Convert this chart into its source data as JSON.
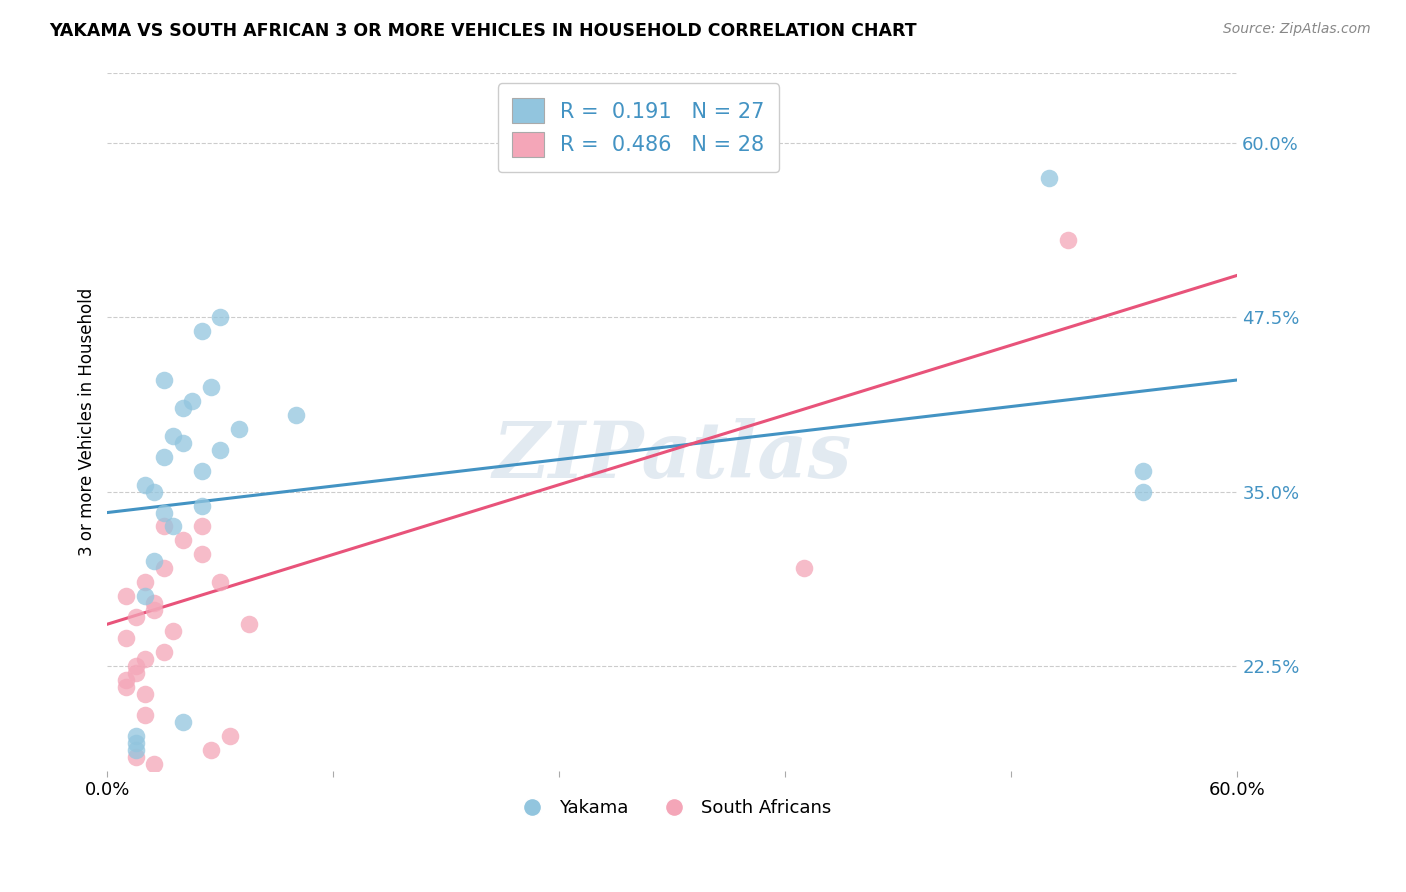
{
  "title": "YAKAMA VS SOUTH AFRICAN 3 OR MORE VEHICLES IN HOUSEHOLD CORRELATION CHART",
  "source": "Source: ZipAtlas.com",
  "ylabel": "3 or more Vehicles in Household",
  "xlim": [
    0.0,
    60.0
  ],
  "ylim": [
    15.0,
    65.0
  ],
  "yticks": [
    22.5,
    35.0,
    47.5,
    60.0
  ],
  "ytick_labels": [
    "22.5%",
    "35.0%",
    "47.5%",
    "60.0%"
  ],
  "xticks": [
    0.0,
    12.0,
    24.0,
    36.0,
    48.0,
    60.0
  ],
  "xtick_labels": [
    "0.0%",
    "",
    "",
    "",
    "",
    "60.0%"
  ],
  "legend_r_blue": "0.191",
  "legend_n_blue": "27",
  "legend_r_pink": "0.486",
  "legend_n_pink": "28",
  "legend_label_blue": "Yakama",
  "legend_label_pink": "South Africans",
  "watermark": "ZIPatlas",
  "blue_color": "#92c5de",
  "pink_color": "#f4a6b8",
  "blue_line_color": "#4393c3",
  "pink_line_color": "#e8537a",
  "blue_scatter_x": [
    3.0,
    5.0,
    6.0,
    4.0,
    5.5,
    3.5,
    4.5,
    3.0,
    2.0,
    4.0,
    2.5,
    3.0,
    6.0,
    7.0,
    2.0,
    5.0,
    1.5,
    4.0,
    5.0,
    2.5,
    3.5,
    10.0,
    55.0,
    55.0,
    50.0,
    1.5,
    1.5
  ],
  "blue_scatter_y": [
    43.0,
    46.5,
    47.5,
    41.0,
    42.5,
    39.0,
    41.5,
    37.5,
    35.5,
    38.5,
    35.0,
    33.5,
    38.0,
    39.5,
    27.5,
    34.0,
    17.5,
    18.5,
    36.5,
    30.0,
    32.5,
    40.5,
    36.5,
    35.0,
    57.5,
    17.0,
    16.5
  ],
  "pink_scatter_x": [
    1.0,
    2.0,
    3.0,
    4.0,
    5.0,
    1.5,
    2.5,
    1.0,
    2.0,
    3.5,
    1.5,
    2.5,
    1.0,
    2.0,
    3.0,
    5.0,
    6.0,
    1.0,
    2.0,
    3.0,
    5.5,
    6.5,
    1.5,
    1.5,
    2.5,
    37.0,
    51.0,
    7.5
  ],
  "pink_scatter_y": [
    27.5,
    28.5,
    29.5,
    31.5,
    32.5,
    26.0,
    27.0,
    24.5,
    23.0,
    25.0,
    22.5,
    26.5,
    21.5,
    20.5,
    32.5,
    30.5,
    28.5,
    21.0,
    19.0,
    23.5,
    16.5,
    17.5,
    22.0,
    16.0,
    15.5,
    29.5,
    53.0,
    25.5
  ],
  "blue_line_x": [
    0.0,
    60.0
  ],
  "blue_line_y_start": 33.5,
  "blue_line_y_end": 43.0,
  "pink_line_x": [
    0.0,
    60.0
  ],
  "pink_line_y_start": 25.5,
  "pink_line_y_end": 50.5
}
